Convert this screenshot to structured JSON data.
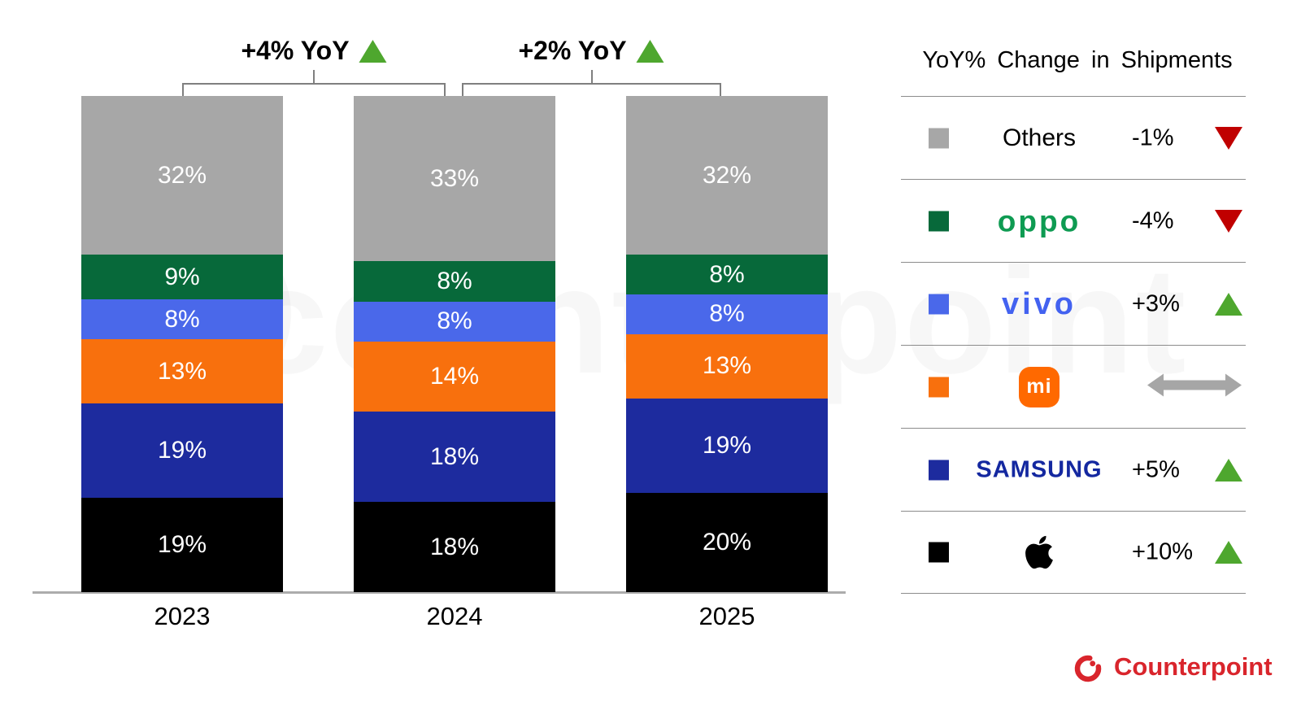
{
  "watermark": {
    "text": "counterpoint"
  },
  "chart_data": {
    "type": "bar",
    "stacked": true,
    "title": "",
    "categories": [
      "2023",
      "2024",
      "2025"
    ],
    "unit": "%",
    "ylim": [
      0,
      100
    ],
    "grid": false,
    "legend_position": "right",
    "series_order": "bottom-to-top",
    "series": [
      {
        "name": "Apple",
        "color": "#000000",
        "values": [
          19,
          18,
          20
        ]
      },
      {
        "name": "Samsung",
        "color": "#1D2B9E",
        "values": [
          19,
          18,
          19
        ]
      },
      {
        "name": "Xiaomi",
        "color": "#F8700D",
        "values": [
          13,
          14,
          13
        ]
      },
      {
        "name": "vivo",
        "color": "#4A68EA",
        "values": [
          8,
          8,
          8
        ]
      },
      {
        "name": "OPPO",
        "color": "#07693A",
        "values": [
          9,
          8,
          8
        ]
      },
      {
        "name": "Others",
        "color": "#A7A7A7",
        "values": [
          32,
          33,
          32
        ]
      }
    ],
    "annotations": [
      {
        "label": "+4% YoY",
        "direction": "up",
        "from": "2023",
        "to": "2024"
      },
      {
        "label": "+2% YoY",
        "direction": "up",
        "from": "2024",
        "to": "2025"
      }
    ]
  },
  "legend": {
    "title": "YoY% Change in Shipments",
    "colors": {
      "up": "#4EA72E",
      "down": "#C00000",
      "flat": "#A6A6A6"
    },
    "rows": [
      {
        "brand": "Others",
        "display": "text",
        "swatch": "#A7A7A7",
        "logo_color": "#000000",
        "logo_text": "Others",
        "change": "-1%",
        "direction": "down"
      },
      {
        "brand": "OPPO",
        "display": "oppo-logo",
        "swatch": "#07693A",
        "logo_color": "#0E9B52",
        "logo_text": "oppo",
        "change": "-4%",
        "direction": "down"
      },
      {
        "brand": "vivo",
        "display": "vivo-logo",
        "swatch": "#4A68EA",
        "logo_color": "#4362F0",
        "logo_text": "vivo",
        "change": "+3%",
        "direction": "up"
      },
      {
        "brand": "Xiaomi",
        "display": "mi-logo",
        "swatch": "#F8700D",
        "logo_color": "#FF6900",
        "logo_text": "mi",
        "change": "",
        "direction": "flat"
      },
      {
        "brand": "Samsung",
        "display": "samsung-logo",
        "swatch": "#1D2B9E",
        "logo_color": "#1428A0",
        "logo_text": "SAMSUNG",
        "change": "+5%",
        "direction": "up"
      },
      {
        "brand": "Apple",
        "display": "apple-logo",
        "swatch": "#000000",
        "logo_color": "#000000",
        "logo_text": "",
        "change": "+10%",
        "direction": "up"
      }
    ]
  },
  "footer": {
    "brand": "Counterpoint",
    "color": "#D9252C"
  }
}
